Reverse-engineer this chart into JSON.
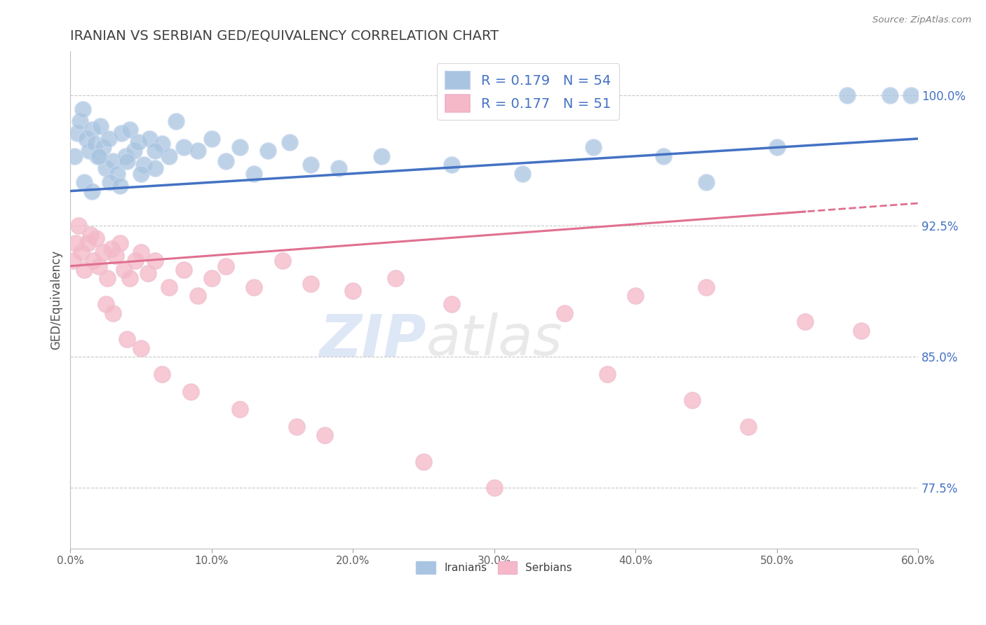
{
  "title": "IRANIAN VS SERBIAN GED/EQUIVALENCY CORRELATION CHART",
  "source": "Source: ZipAtlas.com",
  "ylabel": "GED/Equivalency",
  "xlim": [
    0.0,
    60.0
  ],
  "ylim": [
    74.0,
    102.5
  ],
  "xticks": [
    0.0,
    10.0,
    20.0,
    30.0,
    40.0,
    50.0,
    60.0
  ],
  "yticks_right": [
    77.5,
    85.0,
    92.5,
    100.0
  ],
  "iranians_x": [
    0.3,
    0.5,
    0.7,
    0.9,
    1.1,
    1.3,
    1.5,
    1.7,
    1.9,
    2.1,
    2.3,
    2.5,
    2.7,
    3.0,
    3.3,
    3.6,
    3.9,
    4.2,
    4.5,
    4.8,
    5.2,
    5.6,
    6.0,
    6.5,
    7.0,
    7.5,
    8.0,
    9.0,
    10.0,
    11.0,
    12.0,
    13.0,
    14.0,
    15.5,
    17.0,
    19.0,
    22.0,
    27.0,
    32.0,
    37.0,
    42.0,
    45.0,
    50.0,
    55.0,
    58.0,
    59.5,
    1.0,
    1.5,
    2.0,
    2.8,
    3.5,
    4.0,
    5.0,
    6.0
  ],
  "iranians_y": [
    96.5,
    97.8,
    98.5,
    99.2,
    97.5,
    96.8,
    98.0,
    97.2,
    96.5,
    98.2,
    97.0,
    95.8,
    97.5,
    96.2,
    95.5,
    97.8,
    96.5,
    98.0,
    96.8,
    97.3,
    96.0,
    97.5,
    95.8,
    97.2,
    96.5,
    98.5,
    97.0,
    96.8,
    97.5,
    96.2,
    97.0,
    95.5,
    96.8,
    97.3,
    96.0,
    95.8,
    96.5,
    96.0,
    95.5,
    97.0,
    96.5,
    95.0,
    97.0,
    100.0,
    100.0,
    100.0,
    95.0,
    94.5,
    96.5,
    95.0,
    94.8,
    96.2,
    95.5,
    96.8
  ],
  "serbians_x": [
    0.2,
    0.4,
    0.6,
    0.8,
    1.0,
    1.2,
    1.4,
    1.6,
    1.8,
    2.0,
    2.3,
    2.6,
    2.9,
    3.2,
    3.5,
    3.8,
    4.2,
    4.6,
    5.0,
    5.5,
    6.0,
    7.0,
    8.0,
    9.0,
    10.0,
    11.0,
    13.0,
    15.0,
    17.0,
    20.0,
    23.0,
    27.0,
    35.0,
    40.0,
    45.0,
    52.0,
    56.0,
    2.5,
    3.0,
    4.0,
    5.0,
    6.5,
    8.5,
    12.0,
    16.0,
    18.0,
    25.0,
    30.0,
    38.0,
    44.0,
    48.0
  ],
  "serbians_y": [
    90.5,
    91.5,
    92.5,
    91.0,
    90.0,
    91.5,
    92.0,
    90.5,
    91.8,
    90.2,
    91.0,
    89.5,
    91.2,
    90.8,
    91.5,
    90.0,
    89.5,
    90.5,
    91.0,
    89.8,
    90.5,
    89.0,
    90.0,
    88.5,
    89.5,
    90.2,
    89.0,
    90.5,
    89.2,
    88.8,
    89.5,
    88.0,
    87.5,
    88.5,
    89.0,
    87.0,
    86.5,
    88.0,
    87.5,
    86.0,
    85.5,
    84.0,
    83.0,
    82.0,
    81.0,
    80.5,
    79.0,
    77.5,
    84.0,
    82.5,
    81.0
  ],
  "iranian_color": "#a8c4e0",
  "serbian_color": "#f4b8c8",
  "iranian_line_color": "#4472c4",
  "serbian_line_color": "#e07090",
  "iranian_R": 0.179,
  "iranian_N": 54,
  "serbian_R": 0.177,
  "serbian_N": 51,
  "legend_R_color": "#4472c4",
  "background_color": "#ffffff",
  "title_color": "#404040",
  "grid_color": "#c8c8c8",
  "right_tick_color": "#4472c4",
  "watermark_zip_color": "#c8d8f0",
  "watermark_atlas_color": "#c8c8c8"
}
